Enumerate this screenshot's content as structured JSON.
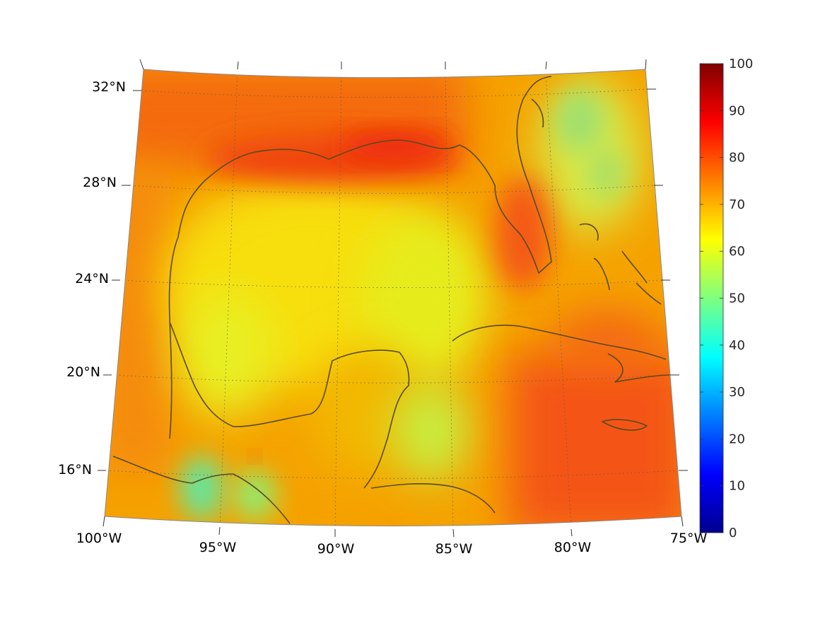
{
  "map": {
    "region": "Gulf of Mexico and Caribbean",
    "projection": "conic",
    "lon_range": [
      -100,
      -75
    ],
    "lat_range": [
      14,
      32.5
    ],
    "graticule": "dotted",
    "coastline_color": "#5a4a1e"
  },
  "axes": {
    "lon_ticks": [
      {
        "value": -100,
        "label": "100°W"
      },
      {
        "value": -95,
        "label": "95°W"
      },
      {
        "value": -90,
        "label": "90°W"
      },
      {
        "value": -85,
        "label": "85°W"
      },
      {
        "value": -80,
        "label": "80°W"
      },
      {
        "value": -75,
        "label": "75°W"
      }
    ],
    "lat_ticks": [
      {
        "value": 32,
        "label": "32°N"
      },
      {
        "value": 28,
        "label": "28°N"
      },
      {
        "value": 24,
        "label": "24°N"
      },
      {
        "value": 20,
        "label": "20°N"
      },
      {
        "value": 16,
        "label": "16°N"
      }
    ]
  },
  "colorbar": {
    "colormap": "jet",
    "min": 0,
    "max": 100,
    "ticks": [
      "0",
      "10",
      "20",
      "30",
      "40",
      "50",
      "60",
      "70",
      "80",
      "90",
      "100"
    ]
  }
}
